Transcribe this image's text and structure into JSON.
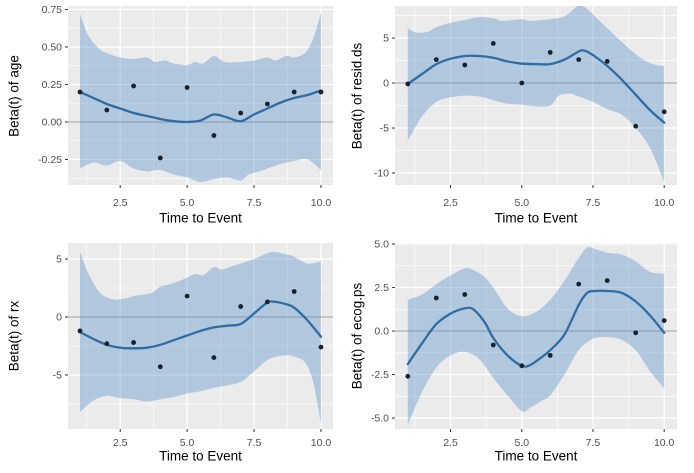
{
  "figure": {
    "background": "#ffffff",
    "description": "2x2 grid of Schoenfeld-residual style smooth plots: Beta(t) versus Time to Event"
  },
  "colors": {
    "panel_bg": "#ebebeb",
    "grid_major": "#ffffff",
    "grid_minor": "#ffffff",
    "band_fill": "#4684c4",
    "band_opacity": 0.35,
    "smooth_line": "#2e6da4",
    "point": "#17222e",
    "zero_line": "#9e9e9e",
    "tick_text": "#4d4d4d",
    "tick_mark": "#333333",
    "axis_title": "#000000"
  },
  "shared_x": {
    "label": "Time to Event",
    "xlim": [
      0.55,
      10.45
    ],
    "ticks": [
      2.5,
      5,
      7.5,
      10
    ],
    "tick_labels": [
      "2.5",
      "5.0",
      "7.5",
      "10.0"
    ],
    "minor": [
      1.25,
      3.75,
      6.25,
      8.75
    ]
  },
  "chart_data": [
    {
      "type": "scatter-smooth-ribbon",
      "title": "",
      "ylabel": "Beta(t) of age",
      "xlabel": "Time to Event",
      "ylim": [
        -0.42,
        0.773
      ],
      "grid": true,
      "legend": "none",
      "yticks": {
        "values": [
          -0.25,
          0,
          0.25,
          0.5,
          0.75
        ],
        "labels": [
          "-0.25",
          "0.00",
          "0.25",
          "0.50",
          "0.75"
        ]
      },
      "yminor": [
        -0.375,
        -0.125,
        0.125,
        0.375,
        0.625
      ],
      "points": [
        [
          1,
          0.2
        ],
        [
          2,
          0.08
        ],
        [
          3,
          0.24
        ],
        [
          4,
          -0.24
        ],
        [
          5,
          0.23
        ],
        [
          6,
          -0.09
        ],
        [
          7,
          0.06
        ],
        [
          8,
          0.12
        ],
        [
          9,
          0.2
        ],
        [
          10,
          0.2
        ]
      ],
      "smooth": [
        [
          1,
          0.2
        ],
        [
          1.5,
          0.16
        ],
        [
          2,
          0.12
        ],
        [
          2.5,
          0.09
        ],
        [
          3,
          0.06
        ],
        [
          3.5,
          0.04
        ],
        [
          4,
          0.02
        ],
        [
          4.5,
          0.005
        ],
        [
          5,
          0.0
        ],
        [
          5.5,
          0.01
        ],
        [
          6,
          0.05
        ],
        [
          6.5,
          0.03
        ],
        [
          7,
          0.005
        ],
        [
          7.5,
          0.05
        ],
        [
          8,
          0.09
        ],
        [
          8.5,
          0.13
        ],
        [
          9,
          0.16
        ],
        [
          9.5,
          0.18
        ],
        [
          10,
          0.21
        ]
      ],
      "band_upper": [
        [
          1,
          0.72
        ],
        [
          1.3,
          0.58
        ],
        [
          1.7,
          0.49
        ],
        [
          2,
          0.46
        ],
        [
          2.5,
          0.43
        ],
        [
          3,
          0.42
        ],
        [
          3.5,
          0.43
        ],
        [
          3.8,
          0.4
        ],
        [
          4.2,
          0.41
        ],
        [
          4.5,
          0.39
        ],
        [
          5,
          0.38
        ],
        [
          5.3,
          0.4
        ],
        [
          5.6,
          0.39
        ],
        [
          6,
          0.44
        ],
        [
          6.4,
          0.4
        ],
        [
          7,
          0.4
        ],
        [
          7.5,
          0.41
        ],
        [
          8,
          0.43
        ],
        [
          8.3,
          0.41
        ],
        [
          8.7,
          0.44
        ],
        [
          9,
          0.43
        ],
        [
          9.4,
          0.46
        ],
        [
          9.7,
          0.55
        ],
        [
          10,
          0.73
        ]
      ],
      "band_lower": [
        [
          1,
          -0.31
        ],
        [
          1.5,
          -0.27
        ],
        [
          2,
          -0.29
        ],
        [
          2.5,
          -0.26
        ],
        [
          3,
          -0.31
        ],
        [
          3.5,
          -0.33
        ],
        [
          4,
          -0.32
        ],
        [
          4.5,
          -0.35
        ],
        [
          5,
          -0.37
        ],
        [
          5.5,
          -0.4
        ],
        [
          6,
          -0.38
        ],
        [
          6.5,
          -0.37
        ],
        [
          7,
          -0.39
        ],
        [
          7.3,
          -0.35
        ],
        [
          7.7,
          -0.33
        ],
        [
          8,
          -0.31
        ],
        [
          8.5,
          -0.28
        ],
        [
          9,
          -0.26
        ],
        [
          9.5,
          -0.25
        ],
        [
          10,
          -0.32
        ]
      ]
    },
    {
      "type": "scatter-smooth-ribbon",
      "title": "",
      "ylabel": "Beta(t) of resid.ds",
      "xlabel": "Time to Event",
      "ylim": [
        -11.33,
        8.56
      ],
      "grid": true,
      "legend": "none",
      "yticks": {
        "values": [
          -10,
          -5,
          0,
          5
        ],
        "labels": [
          "-10",
          "-5",
          "0",
          "5"
        ]
      },
      "yminor": [
        -7.5,
        -2.5,
        2.5,
        7.5
      ],
      "points": [
        [
          1,
          -0.1
        ],
        [
          2,
          2.6
        ],
        [
          3,
          2.0
        ],
        [
          4,
          4.4
        ],
        [
          5,
          0.0
        ],
        [
          6,
          3.4
        ],
        [
          7,
          2.6
        ],
        [
          8,
          2.4
        ],
        [
          9,
          -4.8
        ],
        [
          10,
          -3.2
        ]
      ],
      "smooth": [
        [
          1,
          -0.1
        ],
        [
          1.5,
          1.0
        ],
        [
          2,
          2.1
        ],
        [
          2.5,
          2.7
        ],
        [
          3,
          3.0
        ],
        [
          3.5,
          3.0
        ],
        [
          4,
          2.8
        ],
        [
          4.5,
          2.4
        ],
        [
          5,
          2.15
        ],
        [
          5.5,
          2.1
        ],
        [
          6,
          2.1
        ],
        [
          6.5,
          2.6
        ],
        [
          7,
          3.5
        ],
        [
          7.2,
          3.6
        ],
        [
          7.5,
          3.1
        ],
        [
          8,
          1.9
        ],
        [
          8.5,
          0.4
        ],
        [
          9,
          -1.3
        ],
        [
          9.5,
          -3.0
        ],
        [
          10,
          -4.4
        ]
      ],
      "band_upper": [
        [
          1,
          6.1
        ],
        [
          1.3,
          5.6
        ],
        [
          1.7,
          5.7
        ],
        [
          2,
          6.2
        ],
        [
          2.5,
          6.7
        ],
        [
          3,
          7.0
        ],
        [
          3.5,
          7.3
        ],
        [
          4,
          7.2
        ],
        [
          4.3,
          6.9
        ],
        [
          4.7,
          7.0
        ],
        [
          5,
          7.1
        ],
        [
          5.3,
          6.9
        ],
        [
          5.7,
          7.0
        ],
        [
          6,
          7.1
        ],
        [
          6.5,
          7.4
        ],
        [
          7,
          8.6
        ],
        [
          7.3,
          8.2
        ],
        [
          7.7,
          7.0
        ],
        [
          8,
          6.1
        ],
        [
          8.5,
          4.6
        ],
        [
          9,
          3.2
        ],
        [
          9.5,
          2.2
        ],
        [
          10,
          1.9
        ]
      ],
      "band_lower": [
        [
          1,
          -6.4
        ],
        [
          1.5,
          -3.7
        ],
        [
          2,
          -2.1
        ],
        [
          2.5,
          -1.6
        ],
        [
          3,
          -1.4
        ],
        [
          3.5,
          -1.5
        ],
        [
          4,
          -1.9
        ],
        [
          4.5,
          -2.3
        ],
        [
          5,
          -2.4
        ],
        [
          5.5,
          -2.6
        ],
        [
          6,
          -2.5
        ],
        [
          6.3,
          -1.4
        ],
        [
          6.7,
          -1.2
        ],
        [
          7,
          -1.5
        ],
        [
          7.5,
          -2.1
        ],
        [
          8,
          -2.9
        ],
        [
          8.5,
          -3.5
        ],
        [
          9,
          -5.0
        ],
        [
          9.5,
          -7.2
        ],
        [
          10,
          -11.0
        ]
      ]
    },
    {
      "type": "scatter-smooth-ribbon",
      "title": "",
      "ylabel": "Beta(t) of rx",
      "xlabel": "Time to Event",
      "ylim": [
        -9.66,
        6.38
      ],
      "grid": true,
      "legend": "none",
      "yticks": {
        "values": [
          -5,
          0,
          5
        ],
        "labels": [
          "-5",
          "0",
          "5"
        ]
      },
      "yminor": [
        -7.5,
        -2.5,
        2.5
      ],
      "points": [
        [
          1,
          -1.2
        ],
        [
          2,
          -2.3
        ],
        [
          3,
          -2.2
        ],
        [
          4,
          -4.3
        ],
        [
          5,
          1.8
        ],
        [
          6,
          -3.5
        ],
        [
          7,
          0.9
        ],
        [
          8,
          1.3
        ],
        [
          9,
          2.2
        ],
        [
          10,
          -2.6
        ]
      ],
      "smooth": [
        [
          1,
          -1.3
        ],
        [
          1.5,
          -1.9
        ],
        [
          2,
          -2.4
        ],
        [
          2.5,
          -2.65
        ],
        [
          3,
          -2.7
        ],
        [
          3.5,
          -2.65
        ],
        [
          4,
          -2.4
        ],
        [
          4.5,
          -2.0
        ],
        [
          5,
          -1.6
        ],
        [
          5.5,
          -1.2
        ],
        [
          6,
          -0.9
        ],
        [
          6.5,
          -0.75
        ],
        [
          7,
          -0.6
        ],
        [
          7.5,
          0.3
        ],
        [
          8,
          1.25
        ],
        [
          8.3,
          1.3
        ],
        [
          8.7,
          1.1
        ],
        [
          9,
          0.8
        ],
        [
          9.5,
          -0.3
        ],
        [
          10,
          -1.7
        ]
      ],
      "band_upper": [
        [
          1,
          5.6
        ],
        [
          1.3,
          3.8
        ],
        [
          1.7,
          2.2
        ],
        [
          2,
          1.7
        ],
        [
          2.3,
          1.5
        ],
        [
          2.7,
          1.6
        ],
        [
          3,
          1.8
        ],
        [
          3.3,
          1.9
        ],
        [
          3.7,
          2.1
        ],
        [
          4,
          2.6
        ],
        [
          4.3,
          2.8
        ],
        [
          4.7,
          3.1
        ],
        [
          5,
          3.4
        ],
        [
          5.3,
          3.7
        ],
        [
          5.6,
          3.6
        ],
        [
          6,
          4.3
        ],
        [
          6.3,
          4.1
        ],
        [
          6.7,
          4.4
        ],
        [
          7,
          4.6
        ],
        [
          7.5,
          5.0
        ],
        [
          8,
          5.5
        ],
        [
          8.3,
          5.6
        ],
        [
          8.7,
          5.4
        ],
        [
          9,
          5.2
        ],
        [
          9.5,
          4.6
        ],
        [
          10,
          4.8
        ]
      ],
      "band_lower": [
        [
          1,
          -8.2
        ],
        [
          1.5,
          -7.2
        ],
        [
          2,
          -6.8
        ],
        [
          2.5,
          -7.0
        ],
        [
          3,
          -7.1
        ],
        [
          3.5,
          -7.3
        ],
        [
          4,
          -7.1
        ],
        [
          4.5,
          -6.9
        ],
        [
          5,
          -6.6
        ],
        [
          5.5,
          -6.4
        ],
        [
          6,
          -6.1
        ],
        [
          6.5,
          -5.9
        ],
        [
          7,
          -5.6
        ],
        [
          7.5,
          -4.7
        ],
        [
          8,
          -3.7
        ],
        [
          8.4,
          -3.4
        ],
        [
          8.8,
          -3.3
        ],
        [
          9.1,
          -3.5
        ],
        [
          9.4,
          -3.9
        ],
        [
          9.7,
          -5.5
        ],
        [
          10,
          -9.2
        ]
      ]
    },
    {
      "type": "scatter-smooth-ribbon",
      "title": "",
      "ylabel": "Beta(t) of ecog.ps",
      "xlabel": "Time to Event",
      "ylim": [
        -5.63,
        5.06
      ],
      "grid": true,
      "legend": "none",
      "yticks": {
        "values": [
          -5,
          -2.5,
          0,
          2.5,
          5
        ],
        "labels": [
          "-5.0",
          "-2.5",
          "0.0",
          "2.5",
          "5.0"
        ]
      },
      "yminor": [
        -3.75,
        -1.25,
        1.25,
        3.75
      ],
      "points": [
        [
          1,
          -2.6
        ],
        [
          2,
          1.9
        ],
        [
          3,
          2.1
        ],
        [
          4,
          -0.8
        ],
        [
          5,
          -2.0
        ],
        [
          6,
          -1.4
        ],
        [
          7,
          2.7
        ],
        [
          8,
          2.9
        ],
        [
          9,
          -0.1
        ],
        [
          10,
          0.6
        ]
      ],
      "smooth": [
        [
          1,
          -1.9
        ],
        [
          1.5,
          -0.7
        ],
        [
          2,
          0.4
        ],
        [
          2.5,
          1.0
        ],
        [
          3,
          1.3
        ],
        [
          3.3,
          1.25
        ],
        [
          3.7,
          0.5
        ],
        [
          4,
          -0.4
        ],
        [
          4.5,
          -1.4
        ],
        [
          5,
          -2.0
        ],
        [
          5.3,
          -1.95
        ],
        [
          5.7,
          -1.5
        ],
        [
          6,
          -1.1
        ],
        [
          6.5,
          -0.2
        ],
        [
          7,
          1.5
        ],
        [
          7.3,
          2.2
        ],
        [
          7.6,
          2.3
        ],
        [
          8,
          2.3
        ],
        [
          8.5,
          2.2
        ],
        [
          9,
          1.7
        ],
        [
          9.5,
          0.9
        ],
        [
          10,
          -0.1
        ]
      ],
      "band_upper": [
        [
          1,
          1.8
        ],
        [
          1.5,
          2.1
        ],
        [
          2,
          2.7
        ],
        [
          2.5,
          3.2
        ],
        [
          3,
          3.6
        ],
        [
          3.3,
          3.5
        ],
        [
          3.7,
          3.1
        ],
        [
          4,
          2.5
        ],
        [
          4.5,
          1.3
        ],
        [
          5,
          0.85
        ],
        [
          5.5,
          1.1
        ],
        [
          6,
          1.8
        ],
        [
          6.5,
          2.9
        ],
        [
          7,
          4.2
        ],
        [
          7.3,
          4.8
        ],
        [
          7.6,
          4.7
        ],
        [
          8,
          4.5
        ],
        [
          8.5,
          4.4
        ],
        [
          9,
          4.0
        ],
        [
          9.5,
          3.4
        ],
        [
          10,
          3.3
        ]
      ],
      "band_lower": [
        [
          1,
          -5.4
        ],
        [
          1.5,
          -3.5
        ],
        [
          2,
          -2.1
        ],
        [
          2.5,
          -1.4
        ],
        [
          3,
          -1.2
        ],
        [
          3.5,
          -1.6
        ],
        [
          4,
          -2.7
        ],
        [
          4.5,
          -3.7
        ],
        [
          5,
          -4.6
        ],
        [
          5.3,
          -4.4
        ],
        [
          5.7,
          -4.0
        ],
        [
          6,
          -3.7
        ],
        [
          6.5,
          -2.5
        ],
        [
          7,
          -1.1
        ],
        [
          7.5,
          -0.45
        ],
        [
          8,
          -0.35
        ],
        [
          8.5,
          -0.5
        ],
        [
          9,
          -1.1
        ],
        [
          9.5,
          -2.3
        ],
        [
          10,
          -3.3
        ]
      ]
    }
  ]
}
